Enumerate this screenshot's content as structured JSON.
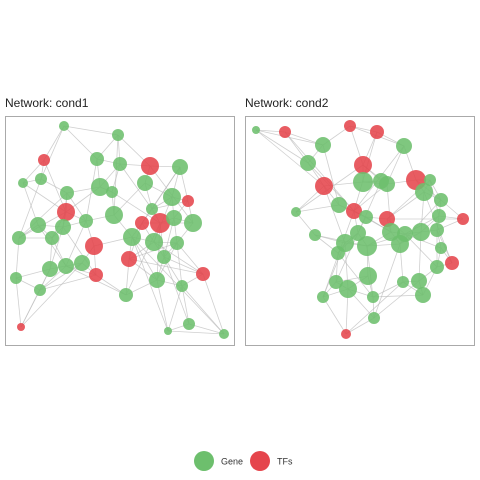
{
  "panels": [
    {
      "title": "Network: cond1"
    },
    {
      "title": "Network: cond2"
    }
  ],
  "legend": [
    "Gene",
    "TFs"
  ]
}
